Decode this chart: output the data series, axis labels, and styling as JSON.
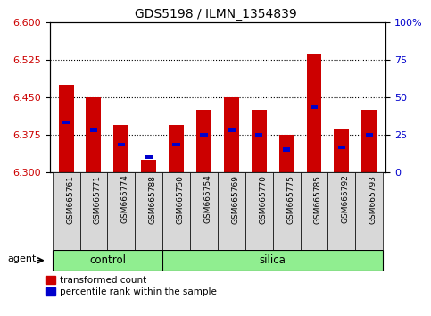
{
  "title": "GDS5198 / ILMN_1354839",
  "samples": [
    "GSM665761",
    "GSM665771",
    "GSM665774",
    "GSM665788",
    "GSM665750",
    "GSM665754",
    "GSM665769",
    "GSM665770",
    "GSM665775",
    "GSM665785",
    "GSM665792",
    "GSM665793"
  ],
  "groups": [
    "control",
    "control",
    "control",
    "control",
    "silica",
    "silica",
    "silica",
    "silica",
    "silica",
    "silica",
    "silica",
    "silica"
  ],
  "bar_values": [
    6.475,
    6.45,
    6.395,
    6.325,
    6.395,
    6.425,
    6.45,
    6.425,
    6.375,
    6.535,
    6.385,
    6.425
  ],
  "percentile_values": [
    6.4,
    6.385,
    6.355,
    6.33,
    6.355,
    6.375,
    6.385,
    6.375,
    6.345,
    6.43,
    6.35,
    6.375
  ],
  "ymin": 6.3,
  "ymax": 6.6,
  "yticks_left": [
    6.3,
    6.375,
    6.45,
    6.525,
    6.6
  ],
  "yticks_right": [
    0,
    25,
    50,
    75,
    100
  ],
  "bar_color": "#cc0000",
  "percentile_color": "#0000cc",
  "bar_bottom": 6.3,
  "control_color": "#90ee90",
  "silica_color": "#90ee90",
  "agent_label": "agent",
  "legend_bar_label": "transformed count",
  "legend_pct_label": "percentile rank within the sample",
  "tick_label_color_left": "#cc0000",
  "tick_label_color_right": "#0000cc",
  "n_control": 4,
  "n_silica": 8
}
